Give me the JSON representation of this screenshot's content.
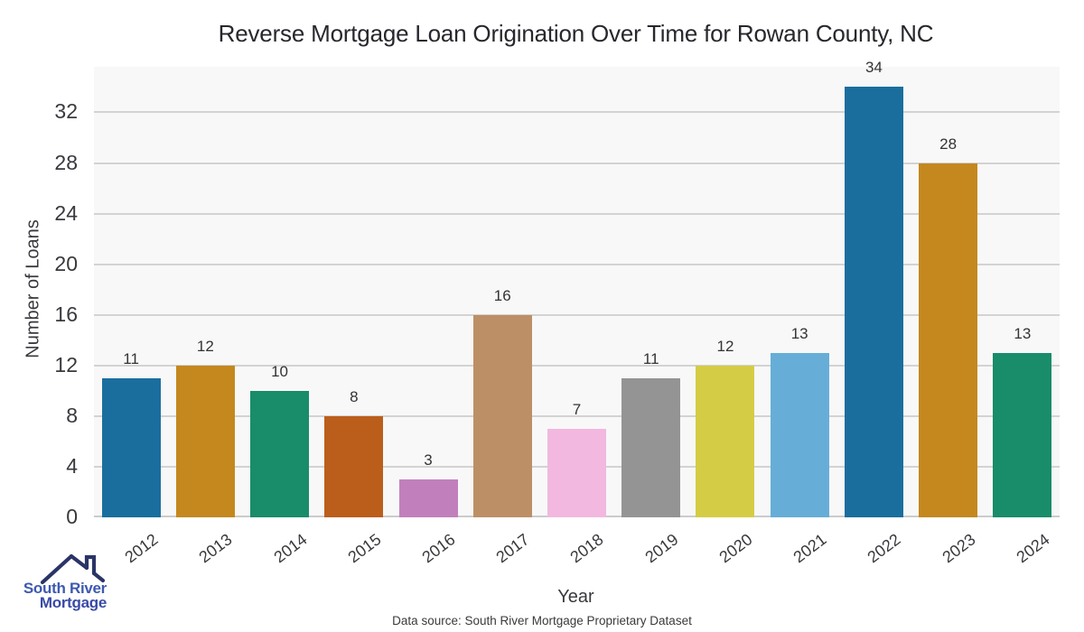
{
  "chart_data": {
    "type": "bar",
    "title": "Reverse Mortgage Loan Origination Over Time for Rowan County, NC",
    "xlabel": "Year",
    "ylabel": "Number of Loans",
    "categories": [
      "2012",
      "2013",
      "2014",
      "2015",
      "2016",
      "2017",
      "2018",
      "2019",
      "2020",
      "2021",
      "2022",
      "2023",
      "2024"
    ],
    "values": [
      11,
      12,
      10,
      8,
      3,
      16,
      7,
      11,
      12,
      13,
      34,
      28,
      13
    ],
    "bar_colors": [
      "#1A6E9E",
      "#C4881E",
      "#198C69",
      "#BB5E1C",
      "#C180BC",
      "#BD8F66",
      "#F2B8E0",
      "#949494",
      "#D5CC45",
      "#66AED7",
      "#1A6E9E",
      "#C4881E",
      "#198C69"
    ],
    "yticks": [
      0,
      4,
      8,
      12,
      16,
      20,
      24,
      28,
      32
    ],
    "ylim": [
      0,
      35.6
    ],
    "grid": "horizontal",
    "legend": "none",
    "plot_background": "#F8F8F8",
    "gridline_color": "#D3D3D3",
    "axis_line_color": "#CBCBCB",
    "tick_text_color": "#39393E",
    "value_label_color": "#333333",
    "source_note": "Data source: South River Mortgage Proprietary Dataset"
  },
  "logo": {
    "line1": "South River",
    "line2": "Mortgage",
    "line1_color": "#3D59B0",
    "line2_color": "#3A4AA6",
    "roof_color": "#2B3467"
  }
}
